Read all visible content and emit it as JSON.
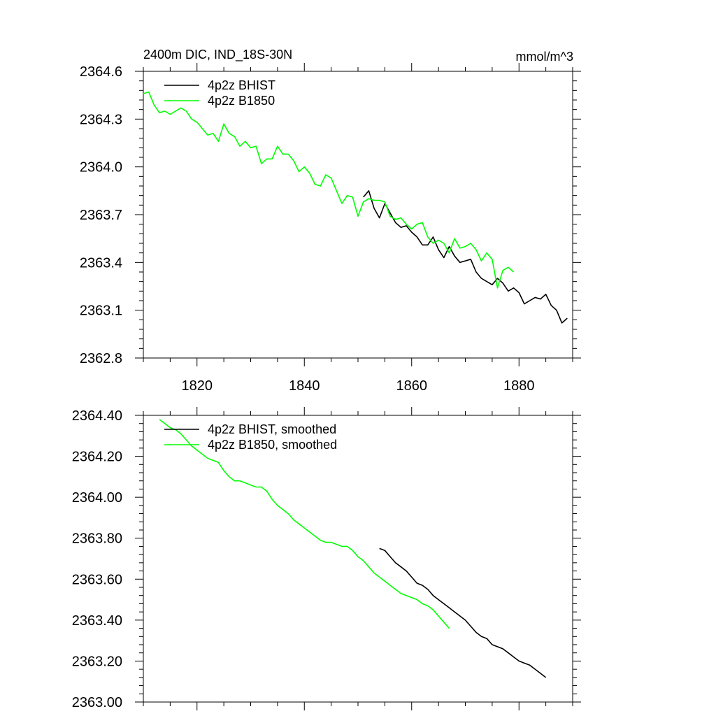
{
  "header": {
    "title": "2400m DIC, IND_18S-30N",
    "units": "mmol/m^3"
  },
  "chart_data": [
    {
      "type": "line",
      "title": "2400m DIC, IND_18S-30N",
      "units": "mmol/m^3",
      "xlim": [
        1810,
        1890
      ],
      "ylim": [
        2362.8,
        2364.6
      ],
      "x_ticks": [
        1820,
        1840,
        1860,
        1880
      ],
      "x_tick_labels": [
        "1820",
        "1840",
        "1860",
        "1880"
      ],
      "y_ticks": [
        2362.8,
        2363.1,
        2363.4,
        2363.7,
        2364.0,
        2364.3,
        2364.6
      ],
      "y_tick_labels": [
        "2362.8",
        "2363.1",
        "2363.4",
        "2363.7",
        "2364.0",
        "2364.3",
        "2364.6"
      ],
      "legend": "top-left",
      "series": [
        {
          "name": "4p2z BHIST",
          "color": "#000000",
          "x_start": 1851,
          "values": [
            2363.81,
            2363.85,
            2363.74,
            2363.68,
            2363.77,
            2363.71,
            2363.65,
            2363.62,
            2363.63,
            2363.59,
            2363.56,
            2363.51,
            2363.51,
            2363.56,
            2363.48,
            2363.43,
            2363.5,
            2363.44,
            2363.4,
            2363.41,
            2363.42,
            2363.34,
            2363.3,
            2363.28,
            2363.26,
            2363.3,
            2363.27,
            2363.22,
            2363.24,
            2363.21,
            2363.14,
            2363.16,
            2363.18,
            2363.17,
            2363.2,
            2363.13,
            2363.1,
            2363.02,
            2363.05
          ]
        },
        {
          "name": "4p2z B1850",
          "color": "#00ff00",
          "x_start": 1810,
          "values": [
            2364.46,
            2364.47,
            2364.39,
            2364.34,
            2364.35,
            2364.33,
            2364.35,
            2364.37,
            2364.35,
            2364.3,
            2364.28,
            2364.24,
            2364.2,
            2364.21,
            2364.16,
            2364.27,
            2364.21,
            2364.19,
            2364.13,
            2364.16,
            2364.12,
            2364.13,
            2364.02,
            2364.05,
            2364.05,
            2364.13,
            2364.08,
            2364.08,
            2364.04,
            2363.97,
            2364.0,
            2363.96,
            2363.89,
            2363.88,
            2363.95,
            2363.93,
            2363.85,
            2363.77,
            2363.82,
            2363.81,
            2363.69,
            2363.78,
            2363.8,
            2363.79,
            2363.79,
            2363.78,
            2363.69,
            2363.67,
            2363.68,
            2363.64,
            2363.61,
            2363.64,
            2363.65,
            2363.56,
            2363.52,
            2363.54,
            2363.52,
            2363.46,
            2363.55,
            2363.49,
            2363.5,
            2363.52,
            2363.48,
            2363.41,
            2363.46,
            2363.42,
            2363.24,
            2363.35,
            2363.37,
            2363.34
          ]
        }
      ]
    },
    {
      "type": "line",
      "xlim": [
        1810,
        1890
      ],
      "ylim": [
        2363.0,
        2364.4
      ],
      "x_ticks": [
        1820,
        1840,
        1860,
        1880
      ],
      "y_ticks": [
        2363.0,
        2363.2,
        2363.4,
        2363.6,
        2363.8,
        2364.0,
        2364.2,
        2364.4
      ],
      "y_tick_labels": [
        "2363.00",
        "2363.20",
        "2363.40",
        "2363.60",
        "2363.80",
        "2364.00",
        "2364.20",
        "2364.40"
      ],
      "legend": "top-left",
      "series": [
        {
          "name": "4p2z BHIST, smoothed",
          "color": "#000000",
          "x_start": 1854,
          "values": [
            2363.75,
            2363.74,
            2363.71,
            2363.68,
            2363.66,
            2363.64,
            2363.61,
            2363.58,
            2363.57,
            2363.55,
            2363.52,
            2363.5,
            2363.48,
            2363.46,
            2363.44,
            2363.42,
            2363.4,
            2363.37,
            2363.34,
            2363.32,
            2363.31,
            2363.28,
            2363.27,
            2363.26,
            2363.24,
            2363.22,
            2363.2,
            2363.19,
            2363.18,
            2363.16,
            2363.14,
            2363.12
          ]
        },
        {
          "name": "4p2z B1850, smoothed",
          "color": "#00ff00",
          "x_start": 1813,
          "values": [
            2364.38,
            2364.36,
            2364.34,
            2364.33,
            2364.31,
            2364.28,
            2364.25,
            2364.23,
            2364.21,
            2364.19,
            2364.18,
            2364.17,
            2364.13,
            2364.1,
            2364.08,
            2364.08,
            2364.07,
            2364.06,
            2364.05,
            2364.05,
            2364.03,
            2363.99,
            2363.96,
            2363.94,
            2363.92,
            2363.89,
            2363.87,
            2363.85,
            2363.83,
            2363.81,
            2363.79,
            2363.78,
            2363.78,
            2363.77,
            2363.76,
            2363.76,
            2363.74,
            2363.71,
            2363.69,
            2363.66,
            2363.63,
            2363.61,
            2363.59,
            2363.57,
            2363.55,
            2363.53,
            2363.52,
            2363.51,
            2363.5,
            2363.48,
            2363.47,
            2363.45,
            2363.42,
            2363.39,
            2363.36
          ]
        }
      ]
    }
  ]
}
